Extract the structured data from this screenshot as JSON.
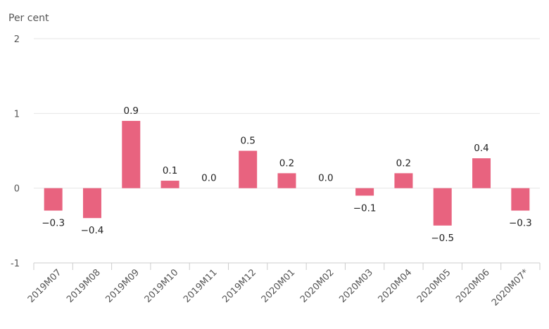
{
  "chart_data": {
    "type": "bar",
    "title": "",
    "ylabel": "Per cent",
    "xlabel": "",
    "ylim": [
      -1,
      2
    ],
    "yticks": [
      -1,
      0,
      1,
      2
    ],
    "categories": [
      "2019M07",
      "2019M08",
      "2019M09",
      "2019M10",
      "2019M11",
      "2019M12",
      "2020M01",
      "2020M02",
      "2020M03",
      "2020M04",
      "2020M05",
      "2020M06",
      "2020M07*"
    ],
    "values": [
      -0.3,
      -0.4,
      0.9,
      0.1,
      0.0,
      0.5,
      0.2,
      0.0,
      -0.1,
      0.2,
      -0.5,
      0.4,
      -0.3
    ],
    "data_labels": [
      "−0.3",
      "−0.4",
      "0.9",
      "0.1",
      "0.0",
      "0.5",
      "0.2",
      "0.0",
      "−0.1",
      "0.2",
      "−0.5",
      "0.4",
      "−0.3"
    ],
    "bar_color": "#e8637f",
    "grid": true,
    "grid_color": "#e6e6e6",
    "axis_color": "#cccccc"
  }
}
